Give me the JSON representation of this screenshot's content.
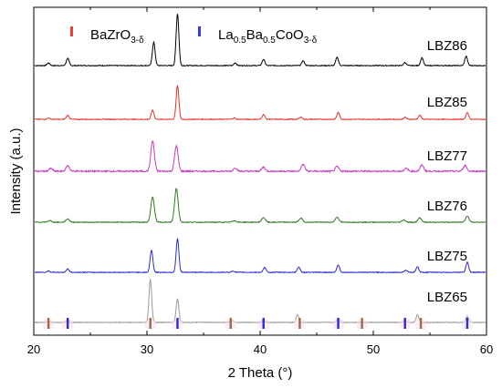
{
  "chart_data": {
    "type": "line",
    "xlabel": "2 Theta (°)",
    "ylabel": "Intensity (a.u.)",
    "xlim": [
      20,
      60
    ],
    "xticks": [
      20,
      30,
      40,
      50,
      60
    ],
    "y_ticks_shown": false,
    "grid": false,
    "legend_position": "top-left",
    "legend": [
      {
        "id": "bzo",
        "base": "BaZrO",
        "sub1": "3-δ",
        "color": "#e8413a"
      },
      {
        "id": "lbc",
        "base": "La",
        "sub1": "0.5",
        "mid1": "Ba",
        "sub2": "0.5",
        "mid2": "CoO",
        "sub3": "3-δ",
        "color": "#3a3ad6"
      }
    ],
    "series": [
      {
        "name": "LBZ86",
        "color": "#000000",
        "peaks": [
          [
            21.3,
            0.05
          ],
          [
            23.0,
            0.14
          ],
          [
            30.6,
            0.45
          ],
          [
            32.7,
            1.0
          ],
          [
            37.8,
            0.05
          ],
          [
            40.3,
            0.12
          ],
          [
            43.8,
            0.09
          ],
          [
            46.8,
            0.16
          ],
          [
            52.8,
            0.06
          ],
          [
            54.3,
            0.15
          ],
          [
            58.2,
            0.18
          ]
        ]
      },
      {
        "name": "LBZ85",
        "color": "#e8302a",
        "peaks": [
          [
            21.3,
            0.04
          ],
          [
            23.0,
            0.12
          ],
          [
            30.5,
            0.27
          ],
          [
            32.7,
            1.0
          ],
          [
            37.7,
            0.04
          ],
          [
            40.3,
            0.14
          ],
          [
            43.6,
            0.07
          ],
          [
            46.9,
            0.2
          ],
          [
            52.8,
            0.06
          ],
          [
            54.1,
            0.12
          ],
          [
            58.3,
            0.2
          ]
        ]
      },
      {
        "name": "LBZ77",
        "color": "#c43cc4",
        "peaks": [
          [
            21.5,
            0.08
          ],
          [
            23.0,
            0.16
          ],
          [
            30.5,
            0.9
          ],
          [
            32.6,
            0.75
          ],
          [
            37.8,
            0.1
          ],
          [
            40.3,
            0.12
          ],
          [
            43.8,
            0.2
          ],
          [
            46.8,
            0.14
          ],
          [
            52.9,
            0.08
          ],
          [
            54.3,
            0.18
          ],
          [
            58.1,
            0.17
          ]
        ]
      },
      {
        "name": "LBZ76",
        "color": "#2e7a1f",
        "peaks": [
          [
            21.4,
            0.05
          ],
          [
            23.0,
            0.1
          ],
          [
            30.5,
            0.74
          ],
          [
            32.6,
            1.0
          ],
          [
            37.7,
            0.05
          ],
          [
            40.3,
            0.14
          ],
          [
            43.6,
            0.12
          ],
          [
            46.8,
            0.15
          ],
          [
            52.7,
            0.07
          ],
          [
            54.1,
            0.13
          ],
          [
            58.3,
            0.18
          ]
        ]
      },
      {
        "name": "LBZ75",
        "color": "#2a2ad0",
        "peaks": [
          [
            21.3,
            0.04
          ],
          [
            23.0,
            0.1
          ],
          [
            30.4,
            0.66
          ],
          [
            32.7,
            1.0
          ],
          [
            37.6,
            0.04
          ],
          [
            40.4,
            0.14
          ],
          [
            43.4,
            0.16
          ],
          [
            46.9,
            0.22
          ],
          [
            52.9,
            0.06
          ],
          [
            53.9,
            0.17
          ],
          [
            58.3,
            0.3
          ]
        ]
      },
      {
        "name": "LBZ65",
        "color": "#9a9a9a",
        "peaks": [
          [
            21.3,
            0.03
          ],
          [
            23.0,
            0.06
          ],
          [
            30.3,
            1.0
          ],
          [
            32.7,
            0.55
          ],
          [
            37.5,
            0.05
          ],
          [
            40.3,
            0.05
          ],
          [
            43.3,
            0.18
          ],
          [
            46.9,
            0.09
          ],
          [
            52.8,
            0.05
          ],
          [
            53.9,
            0.18
          ],
          [
            58.3,
            0.14
          ]
        ]
      }
    ],
    "reference_markers": {
      "BaZrO3-δ": {
        "color": "#9c6a45",
        "x": [
          21.3,
          30.3,
          37.4,
          43.5,
          49.0,
          54.2
        ]
      },
      "La0.5Ba0.5CoO3-δ": {
        "color": "#2a2ad0",
        "x": [
          23.0,
          32.7,
          40.3,
          46.9,
          52.8,
          58.3
        ]
      }
    }
  }
}
